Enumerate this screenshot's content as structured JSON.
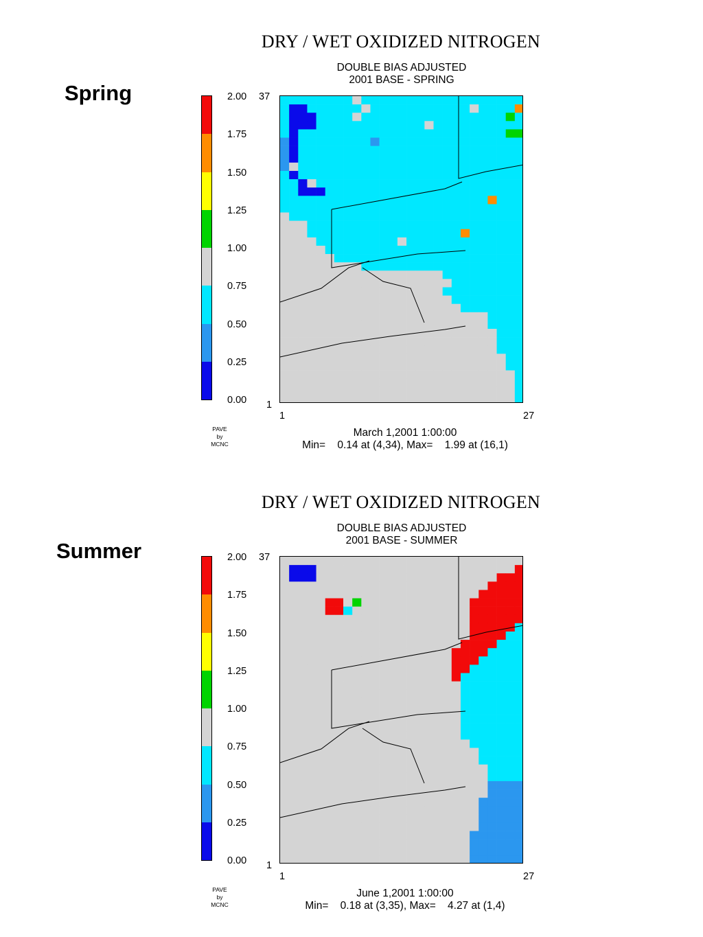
{
  "palette": {
    "cat0": "#0a0aea",
    "cat1": "#2b97ef",
    "cat2": "#00e8ff",
    "cat3": "#d4d4d4",
    "cat4": "#00d400",
    "cat5": "#ffff00",
    "cat6": "#ff8c00",
    "cat7": "#f20a0a"
  },
  "legend": {
    "colors_top_to_bottom": [
      "#f20a0a",
      "#ff8c00",
      "#ffff00",
      "#00d400",
      "#d4d4d4",
      "#00e8ff",
      "#2b97ef",
      "#0a0aea"
    ],
    "labels_top_to_bottom": [
      "2.00",
      "1.75",
      "1.50",
      "1.25",
      "1.00",
      "0.75",
      "0.50",
      "0.25",
      "0.00"
    ]
  },
  "panels": [
    {
      "season_label": "Spring",
      "title": "DRY / WET OXIDIZED NITROGEN",
      "subtitle1": "DOUBLE BIAS ADJUSTED",
      "subtitle2": "2001 BASE - SPRING",
      "y_max": "37",
      "y_min": "1",
      "x_min": "1",
      "x_max": "27",
      "pave1": "PAVE",
      "pave2": "by",
      "pave3": "MCNC",
      "date": "March 1,2001 1:00:00",
      "minmax": "Min=    0.14 at (4,34), Max=    1.99 at (16,1)",
      "grid": [
        "222222223222222222222222222",
        "200222222322222222222322226",
        "200022223222222222222222242",
        "200022222222222232222222222",
        "202222222222222222222222244",
        "102222222212222222222222222",
        "102222222222222222222222222",
        "102222222222222222222222222",
        "132222222222222222222222222",
        "202222222222222222222222222",
        "220322222222222222222222222",
        "220002222222222222222222222",
        "222222222222222222222226222",
        "222222222222222222222222222",
        "322222222222222222222222222",
        "333222222222222222222222222",
        "333222222222222222226222222",
        "333322222222232222222222222",
        "333332222222222222222222222",
        "333333222222222222222222222",
        "333333333222222222222222222",
        "333333333333333333222222222",
        "333333333333333333322222222",
        "333333333333333333222222222",
        "333333333333333333322222222",
        "333333333333333333332222222",
        "333333333333333333333332222",
        "333333333333333333333332222",
        "333333333333333333333333222",
        "333333333333333333333333222",
        "333333333333333333333333222",
        "333333333333333333333333322",
        "333333333333333333333333322",
        "333333333333333333333333332",
        "333333333333333333333333332",
        "333333333333333333333333332",
        "333333333333333333333333332"
      ]
    },
    {
      "season_label": "Summer",
      "title": "DRY / WET OXIDIZED NITROGEN",
      "subtitle1": "DOUBLE BIAS ADJUSTED",
      "subtitle2": "2001 BASE - SUMMER",
      "y_max": "37",
      "y_min": "1",
      "x_min": "1",
      "x_max": "27",
      "pave1": "PAVE",
      "pave2": "by",
      "pave3": "MCNC",
      "date": "June 1,2001 1:00:00",
      "minmax": "Min=    0.18 at (3,35), Max=    4.27 at (1,4)",
      "grid": [
        "333333333333333333333333333",
        "300033333333333333333333337",
        "300033333333333333333333777",
        "333333333333333333333337777",
        "333333333333333333333377777",
        "333337734333333333333777777",
        "333337723333333333333777777",
        "333333333333333333333777777",
        "333333333333333333333777772",
        "333333333333333333333777722",
        "333333333333333333337777222",
        "333333333333333333377772222",
        "333333333333333333377722222",
        "333333333333333333377222222",
        "333333333333333333372222222",
        "333333333333333333332222222",
        "333333333333333333332222222",
        "333333333333333333332222222",
        "333333333333333333332222222",
        "333333333333333333332222222",
        "333333333333333333332222222",
        "333333333333333333332222222",
        "333333333333333333333222222",
        "333333333333333333333322222",
        "333333333333333333333322222",
        "333333333333333333333332222",
        "333333333333333333333332222",
        "333333333333333333333331111",
        "333333333333333333333331111",
        "333333333333333333333311111",
        "333333333333333333333311111",
        "333333333333333333333311111",
        "333333333333333333333311111",
        "333333333333333333333111111",
        "333333333333333333333111111",
        "333333333333333333333111111",
        "333333333333333333333111111"
      ]
    }
  ]
}
